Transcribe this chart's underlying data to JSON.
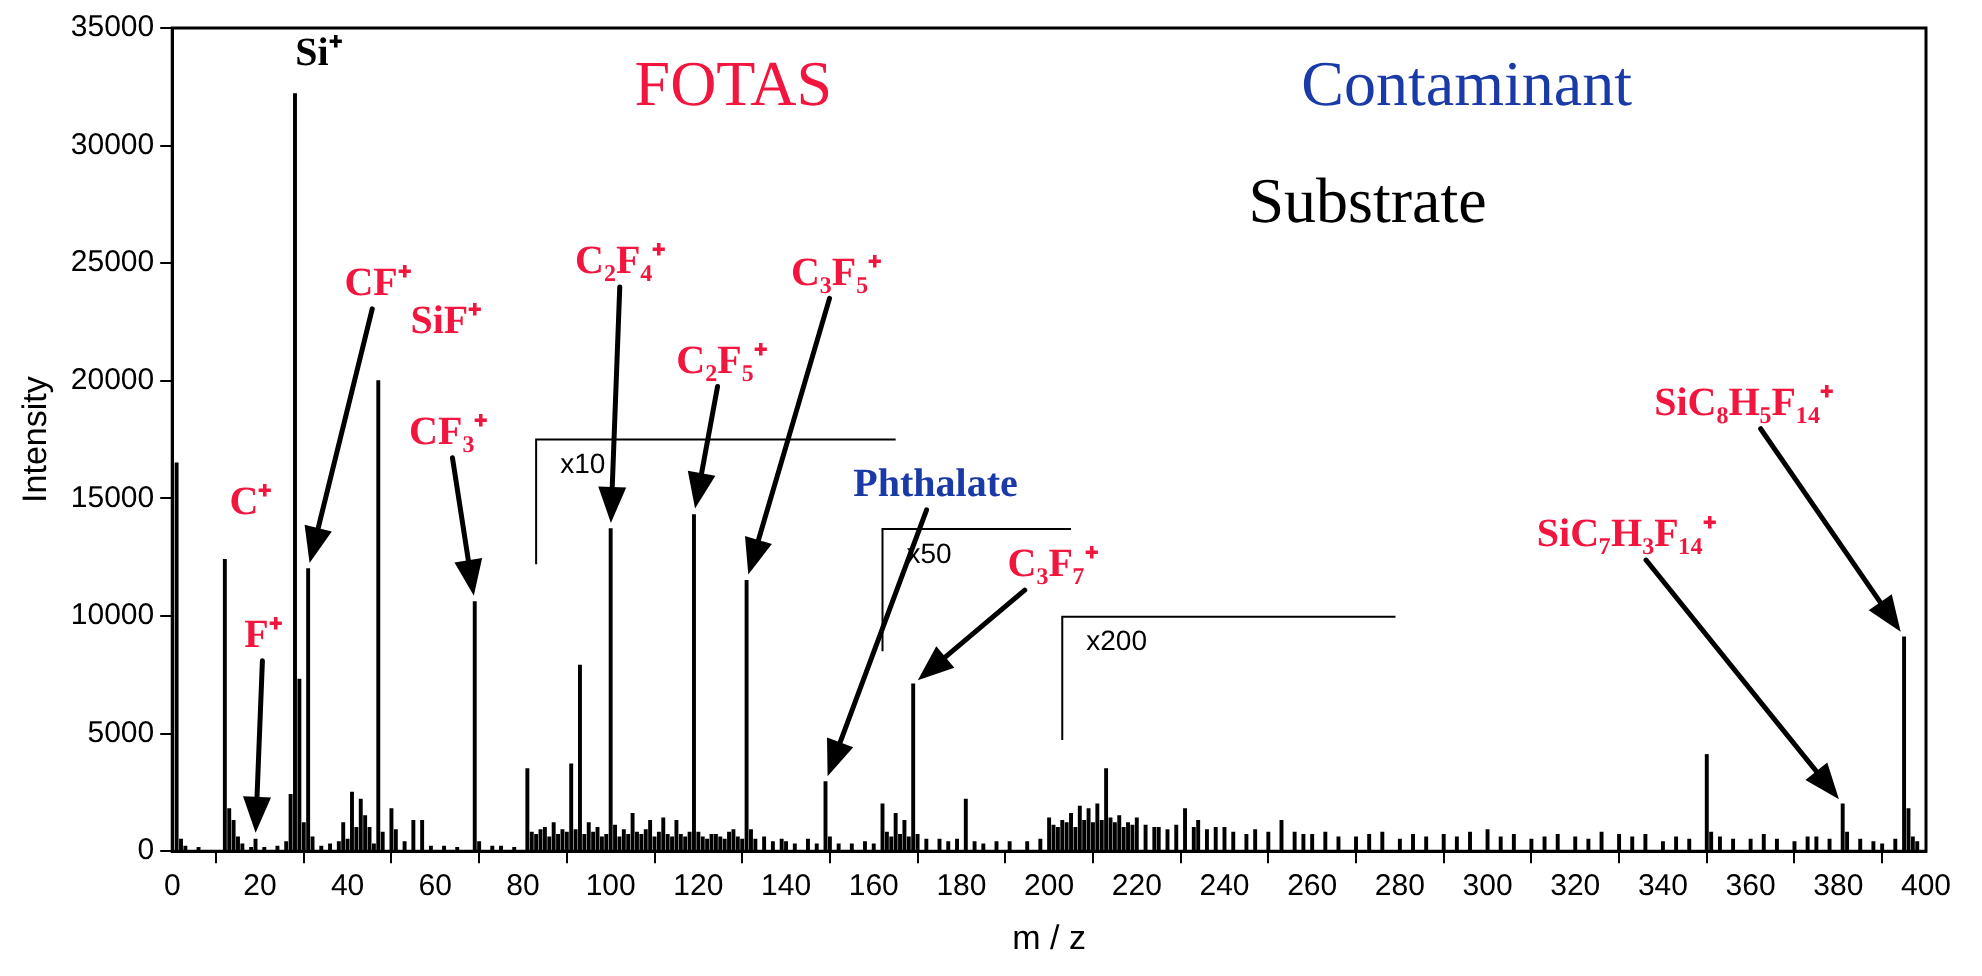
{
  "chart_data": {
    "type": "bar",
    "xlabel": "m / z",
    "ylabel": "Intensity",
    "x": [
      1,
      2,
      3,
      6,
      12,
      13,
      14,
      15,
      16,
      18,
      19,
      21,
      24,
      26,
      27,
      28,
      29,
      30,
      31,
      32,
      34,
      36,
      38,
      39,
      40,
      41,
      42,
      43,
      44,
      45,
      46,
      47,
      48,
      50,
      51,
      53,
      55,
      57,
      59,
      62,
      65,
      69,
      70,
      73,
      75,
      78,
      81,
      82,
      83,
      84,
      85,
      86,
      87,
      88,
      89,
      90,
      91,
      92,
      93,
      94,
      95,
      96,
      97,
      98,
      99,
      100,
      101,
      102,
      103,
      104,
      105,
      106,
      107,
      108,
      109,
      110,
      111,
      112,
      113,
      114,
      115,
      116,
      117,
      118,
      119,
      120,
      121,
      122,
      123,
      124,
      125,
      126,
      127,
      128,
      129,
      130,
      131,
      132,
      133,
      135,
      137,
      139,
      140,
      142,
      145,
      147,
      149,
      150,
      152,
      155,
      158,
      160,
      162,
      163,
      164,
      165,
      166,
      167,
      168,
      169,
      170,
      172,
      175,
      177,
      179,
      181,
      183,
      185,
      188,
      191,
      195,
      198,
      200,
      201,
      202,
      203,
      204,
      205,
      206,
      207,
      208,
      209,
      210,
      211,
      212,
      213,
      214,
      215,
      216,
      217,
      218,
      219,
      220,
      222,
      224,
      225,
      227,
      229,
      231,
      233,
      234,
      236,
      238,
      240,
      242,
      245,
      247,
      250,
      253,
      256,
      258,
      260,
      263,
      266,
      270,
      273,
      276,
      280,
      283,
      286,
      290,
      293,
      296,
      300,
      303,
      306,
      310,
      313,
      316,
      320,
      323,
      326,
      330,
      333,
      336,
      340,
      343,
      346,
      350,
      351,
      353,
      356,
      360,
      363,
      366,
      370,
      373,
      375,
      378,
      381,
      382,
      385,
      388,
      390,
      393,
      395,
      396,
      397,
      398
    ],
    "values": [
      16500,
      500,
      200,
      150,
      12400,
      1800,
      1300,
      600,
      300,
      150,
      500,
      150,
      200,
      400,
      2400,
      32200,
      7300,
      1200,
      12000,
      600,
      200,
      300,
      400,
      1200,
      500,
      2500,
      1000,
      2200,
      1500,
      1000,
      300,
      20000,
      800,
      1800,
      900,
      400,
      1300,
      1300,
      200,
      200,
      150,
      10600,
      400,
      200,
      200,
      150,
      3500,
      800,
      700,
      900,
      1000,
      600,
      1200,
      700,
      900,
      800,
      3700,
      900,
      7900,
      700,
      1200,
      800,
      1000,
      600,
      700,
      13700,
      1100,
      600,
      900,
      700,
      1600,
      800,
      700,
      900,
      1300,
      600,
      800,
      1400,
      700,
      600,
      1300,
      700,
      600,
      800,
      14300,
      800,
      600,
      500,
      700,
      700,
      600,
      500,
      800,
      900,
      600,
      500,
      11500,
      900,
      500,
      600,
      400,
      500,
      400,
      300,
      500,
      300,
      2950,
      600,
      300,
      300,
      400,
      300,
      2000,
      800,
      600,
      1600,
      700,
      1300,
      600,
      7100,
      700,
      500,
      500,
      400,
      500,
      2200,
      400,
      300,
      400,
      400,
      400,
      500,
      1400,
      1100,
      1000,
      1300,
      1200,
      1600,
      1000,
      1900,
      1300,
      1800,
      1200,
      2000,
      1300,
      3500,
      1400,
      1200,
      1500,
      1000,
      1200,
      1100,
      1400,
      1100,
      1000,
      1000,
      900,
      1100,
      1800,
      1000,
      1300,
      900,
      1000,
      1000,
      800,
      700,
      900,
      800,
      1300,
      800,
      700,
      700,
      800,
      600,
      600,
      700,
      800,
      500,
      700,
      600,
      700,
      600,
      800,
      900,
      600,
      700,
      500,
      600,
      700,
      600,
      500,
      800,
      700,
      600,
      700,
      400,
      600,
      500,
      4100,
      800,
      600,
      500,
      500,
      700,
      500,
      400,
      600,
      600,
      500,
      2000,
      800,
      500,
      400,
      300,
      500,
      9100,
      1800,
      600,
      400
    ],
    "color": "#000000",
    "xlim": [
      0,
      400
    ],
    "xticks": [
      0,
      20,
      40,
      60,
      80,
      100,
      120,
      140,
      160,
      180,
      200,
      220,
      240,
      260,
      280,
      300,
      320,
      340,
      360,
      380,
      400
    ],
    "ylim": [
      0,
      35000
    ],
    "yticks": [
      0,
      5000,
      10000,
      15000,
      20000,
      25000,
      30000,
      35000
    ],
    "grid": false,
    "legend": false,
    "annotations": [
      "FOTAS",
      "Contaminant",
      "Substrate",
      "Si⁺",
      "CF⁺",
      "SiF⁺",
      "CF₃⁺",
      "C⁺",
      "F⁺",
      "C₂F₄⁺",
      "C₂F₅⁺",
      "C₃F₅⁺",
      "Phthalate",
      "C₃F₇⁺",
      "SiC₈H₅F₁₄⁺",
      "SiC₇H₃F₁₄⁺",
      "x10",
      "x50",
      "x200"
    ]
  }
}
